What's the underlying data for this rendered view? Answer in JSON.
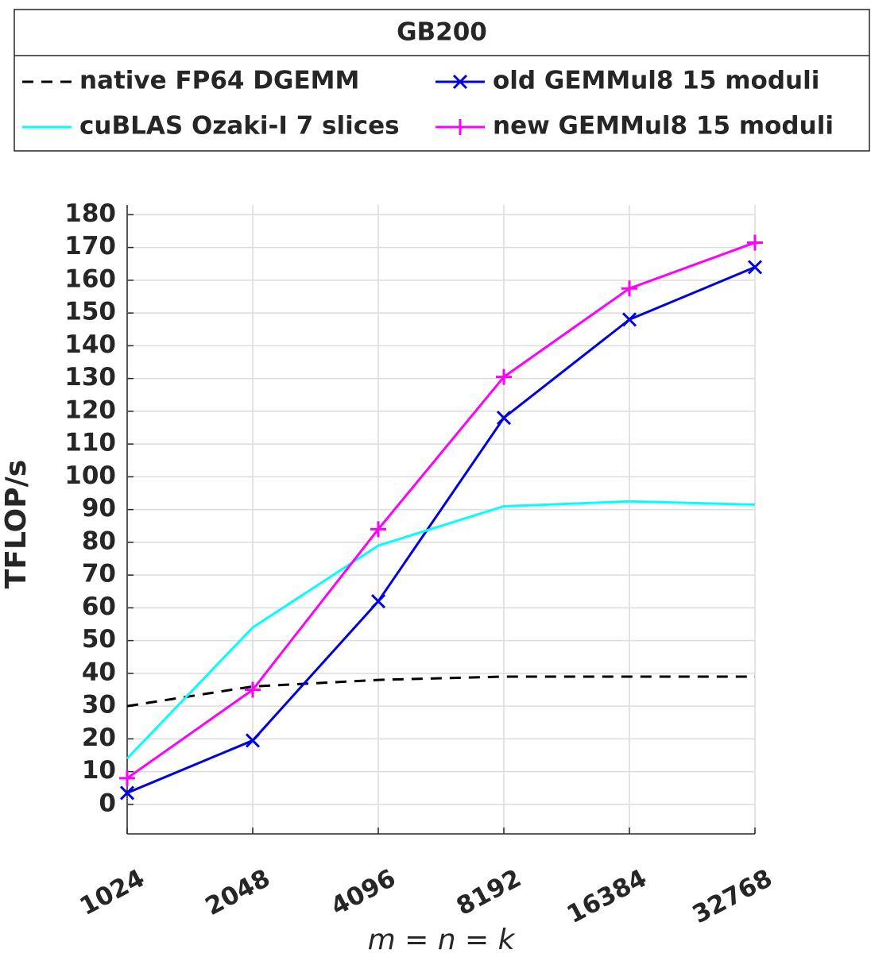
{
  "chart_data": {
    "type": "line",
    "title": "GB200",
    "x_label": "m = n = k",
    "y_label": "TFLOP/s",
    "categories": [
      "1024",
      "2048",
      "4096",
      "8192",
      "16384",
      "32768"
    ],
    "series": [
      {
        "name": "native FP64 DGEMM",
        "color": "#000000",
        "line_style": "dashed",
        "marker": "none",
        "values": [
          30,
          36,
          38,
          39,
          39,
          39
        ]
      },
      {
        "name": "old GEMMul8 15 moduli",
        "color": "#0000e6",
        "line_style": "solid",
        "marker": "x",
        "values": [
          3.5,
          19.5,
          62,
          118,
          148,
          164
        ]
      },
      {
        "name": "cuBLAS Ozaki-I 7 slices",
        "color": "#00ffff",
        "line_style": "solid",
        "marker": "none",
        "values": [
          14,
          54,
          79,
          91,
          92.5,
          91.5
        ]
      },
      {
        "name": "new GEMMul8 15 moduli",
        "color": "#ff00ff",
        "line_style": "solid",
        "marker": "+",
        "values": [
          8,
          35,
          84,
          130.5,
          157.5,
          171.5
        ]
      }
    ],
    "ylim": [
      -9,
      183
    ],
    "yticks": [
      0,
      10,
      20,
      30,
      40,
      50,
      60,
      70,
      80,
      90,
      100,
      110,
      120,
      130,
      140,
      150,
      160,
      170,
      180
    ],
    "grid": true
  }
}
